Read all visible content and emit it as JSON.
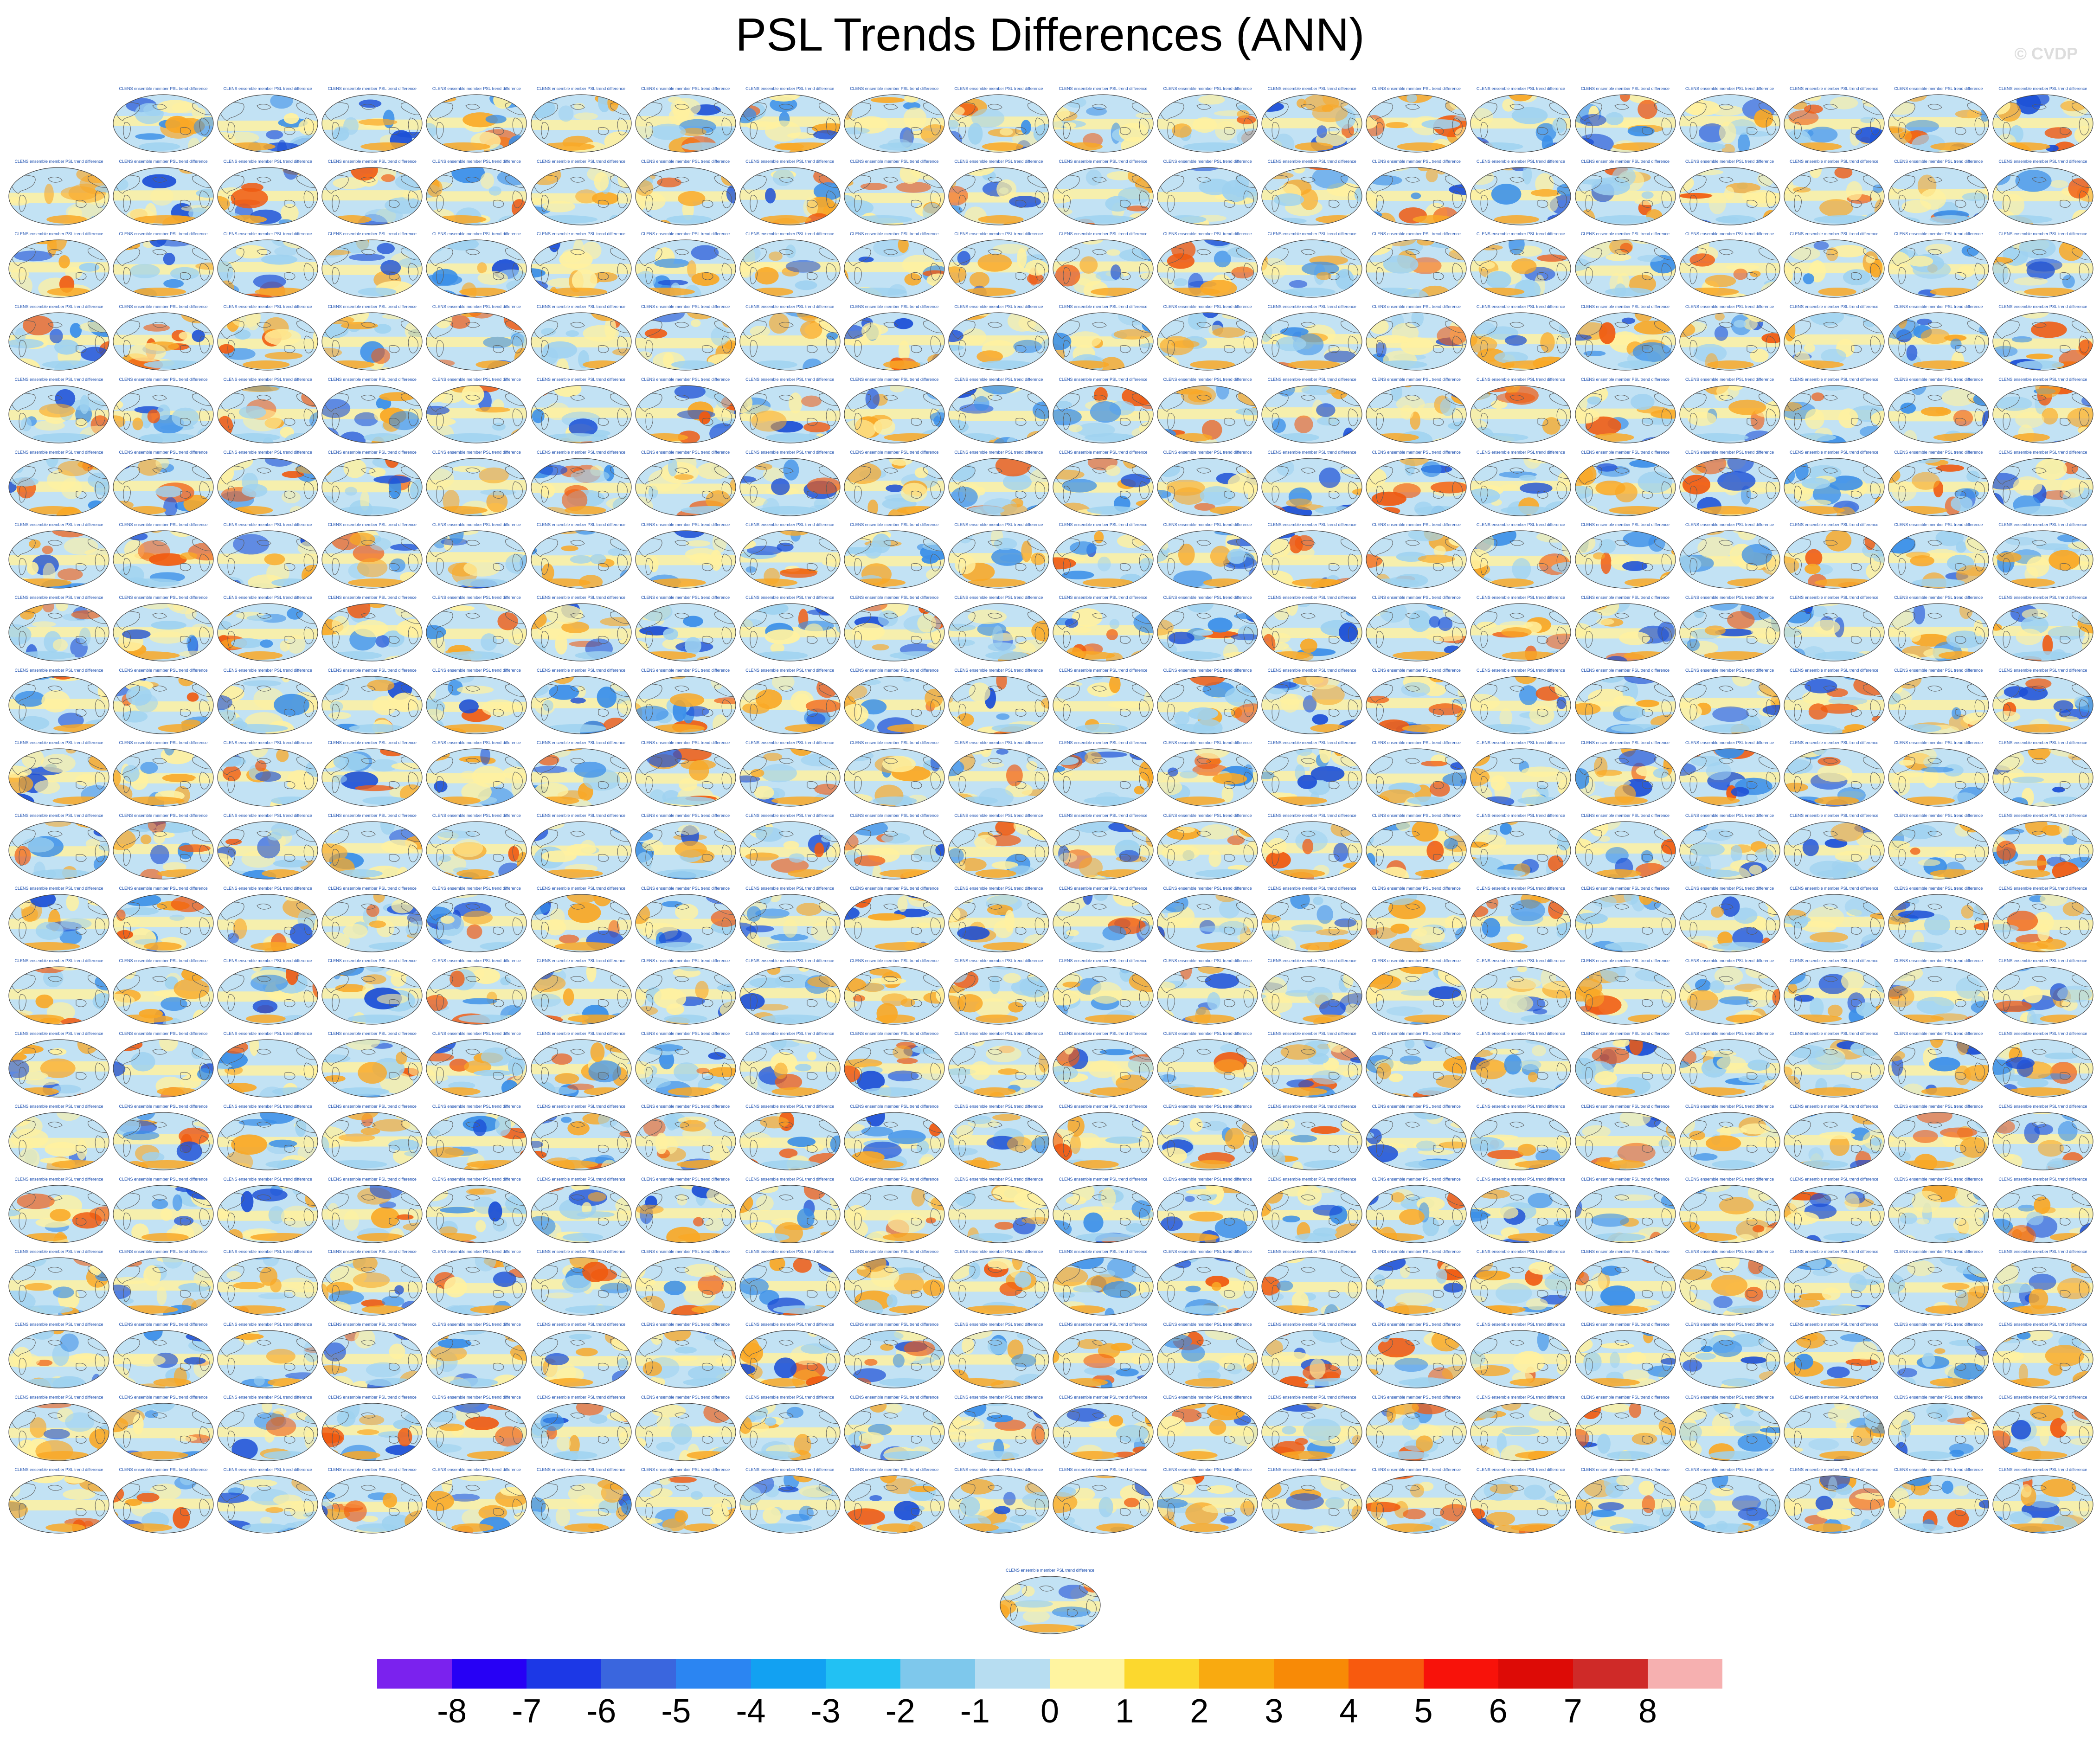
{
  "title": "PSL Trends Differences (ANN)",
  "watermark": "© CVDP",
  "panel_label": "CLENS ensemble member PSL trend difference",
  "panels": {
    "rows": [
      {
        "count": 19,
        "offset": 1
      },
      {
        "count": 20
      },
      {
        "count": 20
      },
      {
        "count": 20
      },
      {
        "count": 20
      },
      {
        "count": 20
      },
      {
        "count": 20
      },
      {
        "count": 20
      },
      {
        "count": 20
      },
      {
        "count": 20
      },
      {
        "count": 20
      },
      {
        "count": 20
      },
      {
        "count": 20
      },
      {
        "count": 20
      },
      {
        "count": 20
      },
      {
        "count": 20
      },
      {
        "count": 20
      },
      {
        "count": 20
      },
      {
        "count": 20
      },
      {
        "count": 20
      },
      {
        "count": 1,
        "centered": true
      }
    ]
  },
  "colorbar": {
    "colors": [
      "#7b22ee",
      "#2700f5",
      "#1c38e6",
      "#3a66de",
      "#2b85f2",
      "#12a1f2",
      "#22c1f3",
      "#7ec8ec",
      "#b7ddf1",
      "#fff4a0",
      "#fcd82e",
      "#f9aa10",
      "#f88a06",
      "#f85a0e",
      "#f8120a",
      "#dd0b06",
      "#cf2a28",
      "#f6b0b0"
    ],
    "labels": [
      "-8",
      "-7",
      "-6",
      "-5",
      "-4",
      "-3",
      "-2",
      "-1",
      "0",
      "1",
      "2",
      "3",
      "4",
      "5",
      "6",
      "7",
      "8"
    ]
  },
  "map_colors": {
    "ocean_neutral": "#c2e2f4",
    "light_blue": "#9fd2f0",
    "blue": "#3b8fe8",
    "deep_blue": "#1c4fd6",
    "yellow": "#fff1a0",
    "orange": "#f9a826",
    "red": "#f05a10",
    "coast": "#5a5a5a"
  }
}
